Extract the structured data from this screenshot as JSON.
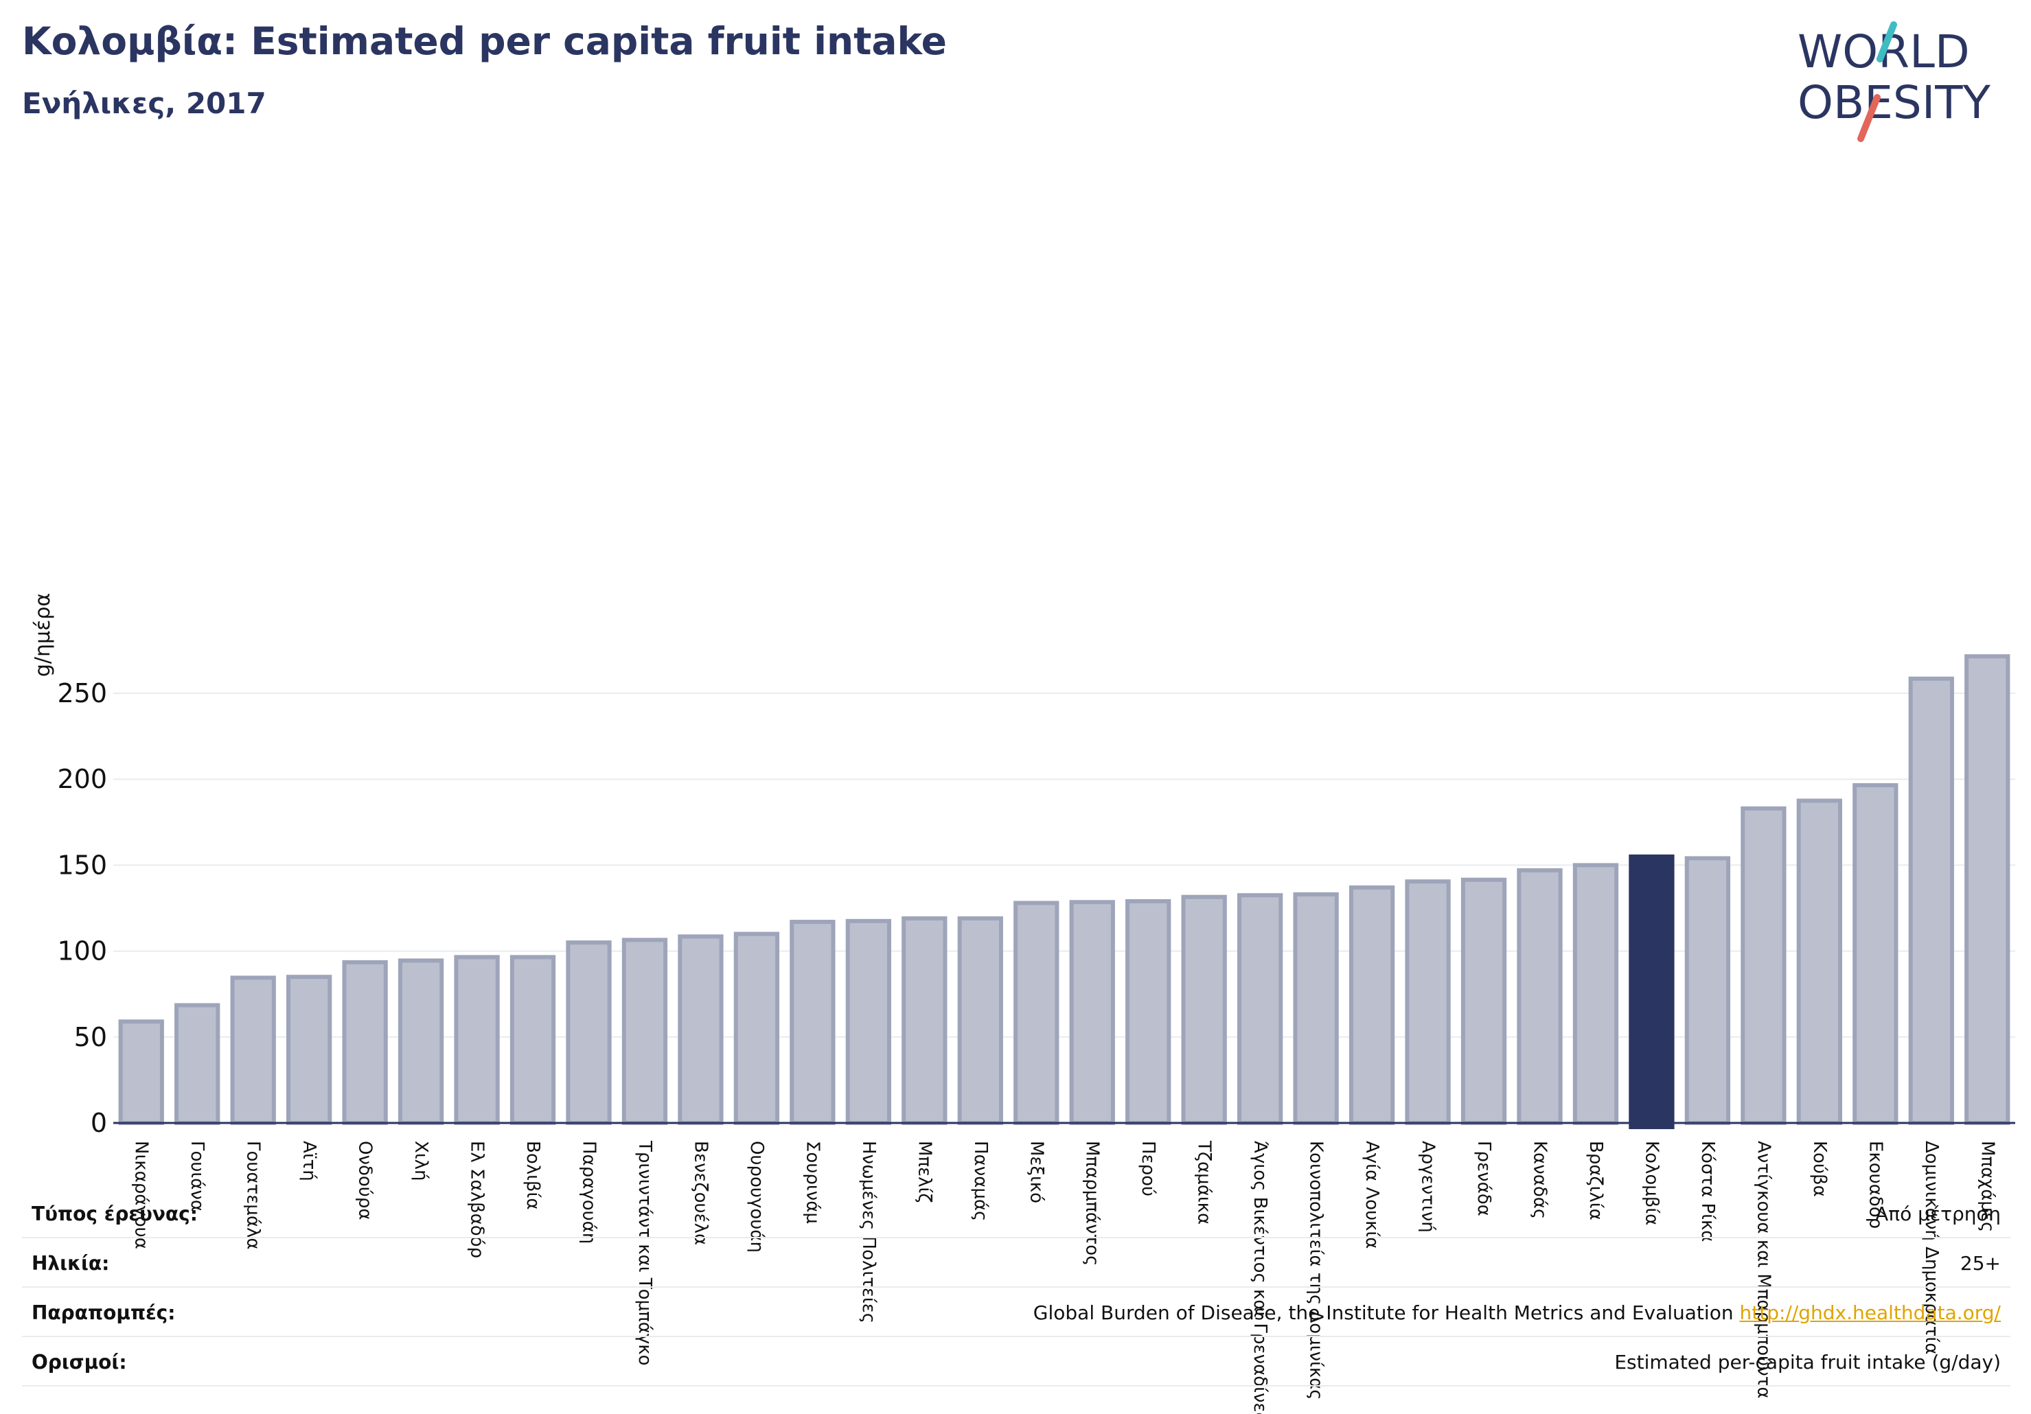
{
  "header": {
    "title": "Κολομβία: Estimated per capita fruit intake",
    "subtitle": "Ενήλικες, 2017"
  },
  "logo": {
    "line1": "WORLD",
    "line2": "OBESITY",
    "slash_colors": [
      "#3fbcc1",
      "#e2665a"
    ]
  },
  "colors": {
    "bar": "#bcc0ce",
    "bar_edge": "#9ea4b9",
    "highlight": "#2b3561",
    "grid": "#e8ecef"
  },
  "chart_data": {
    "type": "bar",
    "ylabel": "g/ημέρα",
    "ylim": [
      0,
      275
    ],
    "yticks": [
      0,
      50,
      100,
      150,
      200,
      250
    ],
    "grid": true,
    "highlight": "Κολομβία",
    "categories": [
      "Νικαράγουα",
      "Γουιάνα",
      "Γουατεμάλα",
      "Αϊτή",
      "Ονδούρα",
      "Χιλή",
      "Ελ Σαλβαδόρ",
      "Βολιβία",
      "Παραγουάη",
      "Τρινιντάντ και Τομπάγκο",
      "Βενεζουέλα",
      "Ουρουγουάη",
      "Σουρινάμ",
      "Ηνωμένες Πολιτείες",
      "Μπελίζ",
      "Παναμάς",
      "Μεξικό",
      "Μπαρμπάντος",
      "Περού",
      "Τζαμάικα",
      "Άγιος Βικέντιος και Γρεναδίνες",
      "Κοινοπολιτεία της Δομινίκας",
      "Αγία Λουκία",
      "Αργεντινή",
      "Γρενάδα",
      "Καναδάς",
      "Βραζιλία",
      "Κολομβία",
      "Κόστα Ρίκα",
      "Αντίγκουα και Μπαρμπούντα",
      "Κούβα",
      "Εκουαδόρ",
      "Δομινικανή Δημοκρατία",
      "Μπαχάμες"
    ],
    "values": [
      59,
      68.5,
      84.5,
      85,
      93.5,
      94.5,
      96.5,
      96.5,
      105,
      106.5,
      108.5,
      110,
      117,
      117.5,
      119,
      119,
      128,
      128.5,
      129,
      131.5,
      132.5,
      133,
      137,
      140.5,
      141.5,
      147,
      150,
      155,
      154,
      183,
      187.5,
      196.5,
      258.5,
      271.5
    ]
  },
  "meta": [
    {
      "label": "Τύπος έρευνας:",
      "value": "Από μέτρηση"
    },
    {
      "label": "Ηλικία:",
      "value": "25+"
    },
    {
      "label": "Παραπομπές:",
      "value": "Global Burden of Disease, the Institute for Health Metrics and Evaluation",
      "link": "http://ghdx.healthdata.org/"
    },
    {
      "label": "Ορισμοί:",
      "value": "Estimated per-capita fruit intake (g/day)"
    }
  ]
}
